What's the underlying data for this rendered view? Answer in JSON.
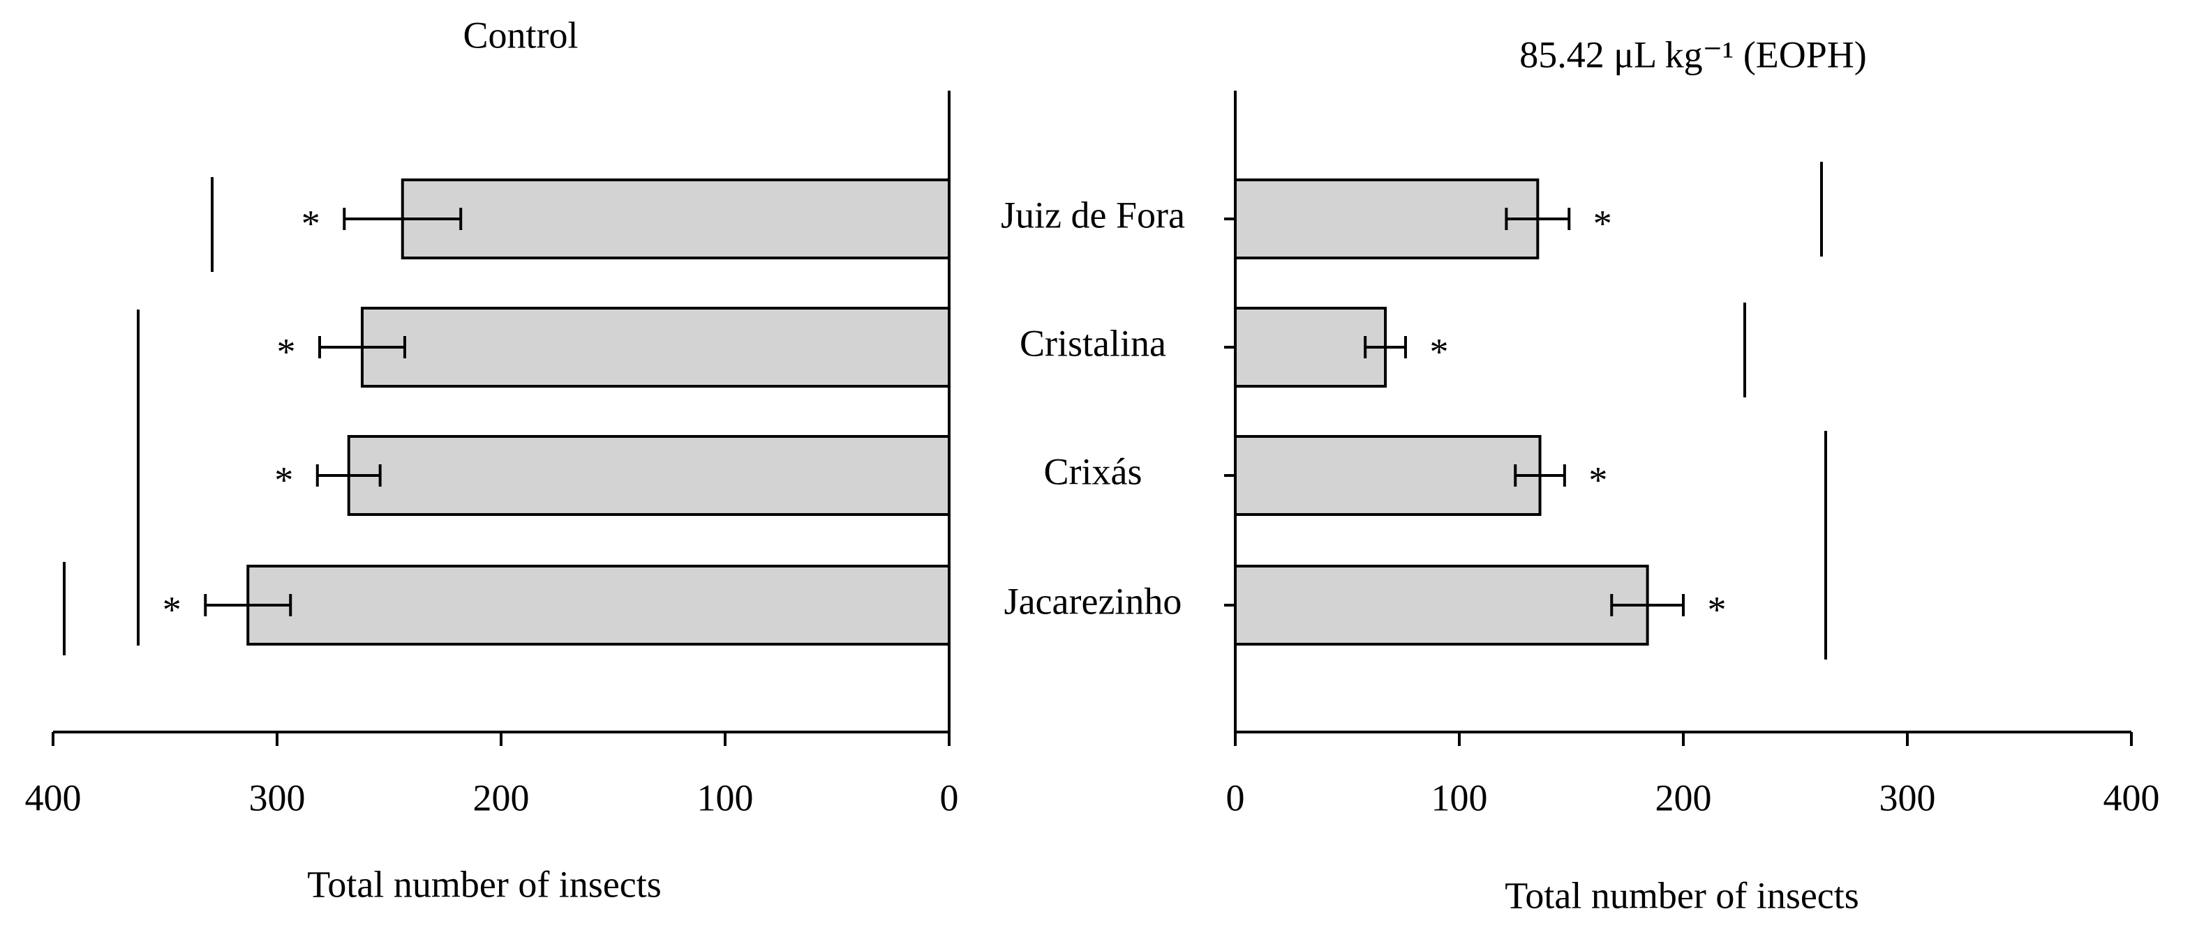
{
  "chart_data": [
    {
      "type": "barh",
      "title": "Control",
      "x_label": "Total number of insects",
      "categories": [
        "Juiz de Fora",
        "Cristalina",
        "Crixás",
        "Jacarezinho"
      ],
      "values": [
        244,
        262,
        268,
        313
      ],
      "errors": [
        26,
        19,
        14,
        19
      ],
      "markers": [
        "*",
        "*",
        "*",
        "*"
      ],
      "color": "#d3d3d3",
      "xlim": [
        0,
        400
      ],
      "xticks": [
        400,
        300,
        200,
        100,
        0
      ],
      "x_reversed": true
    },
    {
      "type": "barh",
      "title": "85.42 μL kg⁻¹ (EOPH)",
      "x_label": "Total number of insects",
      "values": [
        135,
        67,
        136,
        184
      ],
      "errors": [
        14,
        9,
        11,
        16
      ],
      "markers": [
        "*",
        "*",
        "*",
        "*"
      ],
      "color": "#d3d3d3",
      "xlim": [
        0,
        400
      ],
      "xticks": [
        0,
        100,
        200,
        300,
        400
      ],
      "x_reversed": false
    }
  ]
}
